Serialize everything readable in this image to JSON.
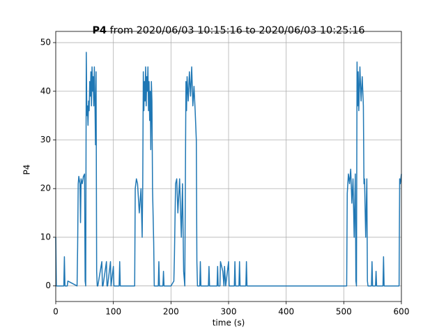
{
  "chart_data": {
    "type": "line",
    "title_bold": "P4",
    "title": "from 2020/06/03 10:15:16 to 2020/06/03 10:25:16",
    "x_label": "time (s)",
    "y_label": "P4",
    "x": [
      0,
      1,
      2,
      14,
      15,
      16,
      20,
      21,
      37,
      38,
      39,
      40,
      42,
      43,
      44,
      46,
      48,
      50,
      51,
      52,
      53,
      54,
      55,
      56,
      57,
      58,
      59,
      60,
      61,
      62,
      63,
      64,
      65,
      66,
      67,
      68,
      69,
      70,
      71,
      72,
      73,
      80,
      81,
      82,
      88,
      89,
      90,
      95,
      96,
      97,
      100,
      101,
      110,
      111,
      112,
      118,
      119,
      120,
      125,
      130,
      137,
      138,
      140,
      142,
      145,
      148,
      150,
      151,
      152,
      153,
      154,
      155,
      156,
      157,
      158,
      159,
      160,
      161,
      162,
      163,
      164,
      165,
      166,
      167,
      168,
      170,
      171,
      172,
      178,
      179,
      180,
      186,
      187,
      188,
      200,
      205,
      206,
      208,
      210,
      212,
      215,
      218,
      220,
      222,
      224,
      226,
      227,
      228,
      230,
      232,
      234,
      236,
      238,
      240,
      242,
      244,
      245,
      246,
      250,
      251,
      252,
      265,
      266,
      267,
      280,
      281,
      282,
      285,
      286,
      290,
      292,
      293,
      295,
      300,
      301,
      302,
      310,
      311,
      312,
      318,
      319,
      320,
      330,
      331,
      332,
      505,
      506,
      508,
      510,
      512,
      514,
      516,
      518,
      520,
      521,
      522,
      523,
      524,
      525,
      526,
      528,
      530,
      532,
      534,
      535,
      536,
      538,
      540,
      541,
      542,
      548,
      549,
      550,
      555,
      556,
      557,
      568,
      569,
      570,
      596,
      597,
      598,
      600
    ],
    "values": [
      10,
      0,
      0,
      0,
      6,
      0,
      0,
      1,
      0,
      8,
      21,
      22.5,
      21,
      13,
      22,
      21,
      22.5,
      23,
      1,
      0,
      48,
      35,
      37,
      33,
      38,
      36,
      42,
      39,
      44,
      37,
      45,
      40,
      43,
      37,
      45,
      38,
      29,
      44,
      3,
      0,
      0,
      5,
      0,
      0,
      5,
      0,
      0,
      5,
      0,
      1,
      4,
      0,
      0,
      5,
      0,
      0,
      0,
      0,
      0,
      0,
      0,
      20,
      22,
      21,
      15,
      20,
      10,
      21,
      44,
      36,
      42,
      38,
      45,
      37,
      43,
      40,
      45,
      36,
      42,
      34,
      40,
      28,
      42,
      38,
      20,
      9,
      0,
      0,
      0,
      5,
      0,
      0,
      3,
      0,
      0,
      1,
      6,
      21,
      22,
      15,
      22,
      10,
      21,
      3,
      0,
      42,
      36,
      43,
      38,
      44,
      39,
      45,
      37,
      41,
      36,
      30,
      5,
      0,
      0,
      5,
      0,
      0,
      4,
      0,
      0,
      4,
      0,
      0,
      5,
      3,
      0,
      4,
      0,
      5,
      0,
      0,
      0,
      5,
      0,
      0,
      5,
      0,
      0,
      5,
      0,
      0,
      19,
      23,
      21,
      24,
      17,
      22,
      10,
      23,
      1,
      0,
      46,
      37,
      44,
      36,
      45,
      38,
      43,
      37,
      21,
      22,
      10,
      22,
      1,
      0,
      0,
      5,
      0,
      0,
      3,
      0,
      0,
      6,
      0,
      0,
      22,
      21,
      23
    ],
    "color": "#1f77b4",
    "xlim": [
      0,
      600
    ],
    "ylim": [
      -3.2,
      52.3
    ],
    "xticks": [
      0,
      100,
      200,
      300,
      400,
      500,
      600
    ],
    "yticks": [
      0,
      10,
      20,
      30,
      40,
      50
    ],
    "grid": true
  }
}
